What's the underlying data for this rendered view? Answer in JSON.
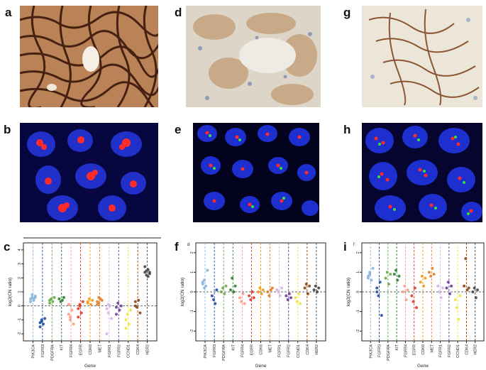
{
  "figure": {
    "panel_labels": [
      "a",
      "b",
      "c",
      "d",
      "e",
      "f",
      "g",
      "h",
      "i"
    ],
    "ihc_panels": [
      {
        "id": "a",
        "stain_intensity": "strong"
      },
      {
        "id": "d",
        "stain_intensity": "weak"
      },
      {
        "id": "g",
        "stain_intensity": "moderate"
      }
    ],
    "fish_panels": [
      {
        "id": "b",
        "pattern": "red clusters"
      },
      {
        "id": "e",
        "pattern": "scattered red and green dots"
      },
      {
        "id": "h",
        "pattern": "many red and green dots"
      }
    ],
    "axis_text": {
      "ylabel_c": "log2(CN ratio)",
      "ylabel_f": "log2(CN ratio)",
      "ylabel_i": "log2(CN ratio)",
      "xlabel": "Gene",
      "corner_f": "d",
      "corner_i": "f"
    },
    "colors": {
      "ihc_brown": "#5a2a12",
      "fish_blue": "#1e2fd0",
      "fish_red": "#ff2020",
      "fish_green": "#38e038"
    }
  },
  "chart_data": [
    {
      "type": "scatter",
      "panel": "c",
      "xlabel": "Gene",
      "ylabel": "log2(CN ratio)",
      "ylim": [
        -2.5,
        4.5
      ],
      "yticks": [
        -2,
        -1,
        0,
        1,
        2,
        3,
        4
      ],
      "categories": [
        "PIK3CA",
        "FGFR3",
        "PDGFRA",
        "KIT",
        "FGFR4",
        "EGFR",
        "CDK6",
        "MET",
        "FGFR1",
        "FGFR2",
        "CCND1",
        "CDK4",
        "HER2"
      ],
      "category_colors": [
        "#8ab4dc",
        "#1f4fa0",
        "#6aa84f",
        "#2e7d32",
        "#ff9a8a",
        "#e03a2a",
        "#f39c12",
        "#e67e22",
        "#d8b4e6",
        "#6a3d9a",
        "#f0e442",
        "#8b4513",
        "#444444"
      ],
      "points": {
        "PIK3CA": [
          0.5,
          0.6,
          0.4,
          0.7,
          0.3,
          0.8,
          0.5,
          0.6
        ],
        "FGFR3": [
          -1.2,
          -1.0,
          -1.3,
          -0.9,
          -1.5,
          -1.1
        ],
        "PDGFRA": [
          0.4,
          0.5,
          0.3,
          0.6,
          0.2
        ],
        "KIT": [
          0.5,
          0.3,
          0.4,
          0.6
        ],
        "FGFR4": [
          -0.6,
          -1.0,
          -0.3,
          -1.3,
          0.1,
          -0.8
        ],
        "EGFR": [
          -0.2,
          0.1,
          -0.5,
          0.3,
          -0.8,
          0.0
        ],
        "CDK6": [
          0.3,
          0.5,
          0.1,
          0.4,
          0.2
        ],
        "MET": [
          0.3,
          0.2,
          0.5,
          0.4,
          0.1,
          0.6
        ],
        "FGFR1": [
          -0.2,
          -0.5,
          0.0,
          -0.9,
          -2.0,
          0.1
        ],
        "FGFR2": [
          -0.1,
          0.2,
          -0.3,
          0.0,
          -0.6
        ],
        "CCND1": [
          -1.0,
          -0.6,
          -1.3,
          -0.3,
          -1.6
        ],
        "CDK4": [
          0.3,
          -0.1,
          0.4,
          -0.5,
          0.0
        ],
        "HER2": [
          2.4,
          2.2,
          2.6,
          2.3,
          2.8,
          2.5,
          2.1,
          2.4
        ]
      }
    },
    {
      "type": "scatter",
      "panel": "f",
      "xlabel": "Gene",
      "ylabel": "log2(CN ratio)",
      "ylim": [
        -2.5,
        2.5
      ],
      "yticks": [
        -2,
        -1,
        0,
        1,
        2
      ],
      "categories": [
        "PIK3CA",
        "FGFR3",
        "PDGFRA",
        "KIT",
        "FGFR4",
        "EGFR",
        "CDK6",
        "MET",
        "FGFR1",
        "FGFR2",
        "CCND1",
        "CDK4",
        "HER2"
      ],
      "category_colors": [
        "#8ab4dc",
        "#1f4fa0",
        "#6aa84f",
        "#2e7d32",
        "#ff9a8a",
        "#e03a2a",
        "#f39c12",
        "#e67e22",
        "#d8b4e6",
        "#6a3d9a",
        "#f0e442",
        "#8b4513",
        "#444444"
      ],
      "points": {
        "PIK3CA": [
          0.4,
          0.6,
          0.3,
          1.1,
          0.5,
          0.2
        ],
        "FGFR3": [
          -0.2,
          -0.4,
          -0.6,
          0.1
        ],
        "PDGFRA": [
          0.0,
          0.2,
          -0.1,
          0.3
        ],
        "KIT": [
          0.1,
          0.7,
          0.0,
          0.3
        ],
        "FGFR4": [
          -0.3,
          -0.5,
          -0.1,
          -0.6
        ],
        "EGFR": [
          -0.2,
          -0.4,
          0.0,
          -0.3
        ],
        "CDK6": [
          0.0,
          0.2,
          -0.1,
          0.1
        ],
        "MET": [
          0.0,
          -0.2,
          0.1,
          0.2
        ],
        "FGFR1": [
          0.1,
          0.0,
          -0.2,
          0.2
        ],
        "FGFR2": [
          -0.2,
          -0.4,
          -0.1,
          -0.3
        ],
        "CCND1": [
          -0.3,
          -0.5,
          -0.1,
          -0.6
        ],
        "CDK4": [
          0.2,
          0.4,
          -0.1,
          0.3
        ],
        "HER2": [
          0.1,
          0.3,
          0.0,
          0.2
        ]
      }
    },
    {
      "type": "scatter",
      "panel": "i",
      "xlabel": "Gene",
      "ylabel": "log2(CN ratio)",
      "ylim": [
        -2.5,
        2.5
      ],
      "yticks": [
        -2,
        -1,
        0,
        1,
        2
      ],
      "categories": [
        "PIK3CA",
        "FGFR3",
        "PDGFRA",
        "KIT",
        "FGFR4",
        "EGFR",
        "CDK6",
        "MET",
        "FGFR1",
        "FGFR2",
        "CCND1",
        "CDK4",
        "HER2"
      ],
      "category_colors": [
        "#8ab4dc",
        "#1f4fa0",
        "#6aa84f",
        "#2e7d32",
        "#ff9a8a",
        "#e03a2a",
        "#f39c12",
        "#e67e22",
        "#d8b4e6",
        "#6a3d9a",
        "#f0e442",
        "#8b4513",
        "#444444"
      ],
      "points": {
        "PIK3CA": [
          0.8,
          1.0,
          0.6,
          1.2,
          0.7,
          0.9
        ],
        "FGFR3": [
          0.2,
          -0.2,
          0.5,
          -1.2,
          0.0
        ],
        "PDGFRA": [
          0.7,
          1.0,
          0.4,
          0.9
        ],
        "KIT": [
          0.9,
          1.1,
          0.6,
          0.8
        ],
        "FGFR4": [
          0.0,
          0.3,
          -0.4,
          0.1
        ],
        "EGFR": [
          -0.2,
          -0.5,
          0.2,
          -0.8
        ],
        "CDK6": [
          0.5,
          0.8,
          0.3,
          0.7
        ],
        "MET": [
          1.0,
          0.8,
          1.2,
          0.9
        ],
        "FGFR1": [
          0.3,
          0.0,
          -0.3,
          0.2
        ],
        "FGFR2": [
          0.2,
          0.5,
          -0.1,
          0.3
        ],
        "CCND1": [
          -0.4,
          -0.8,
          -1.4,
          -0.2
        ],
        "CDK4": [
          0.3,
          1.7,
          0.1,
          0.2
        ],
        "HER2": [
          0.0,
          0.2,
          -0.3,
          0.1
        ]
      }
    }
  ]
}
